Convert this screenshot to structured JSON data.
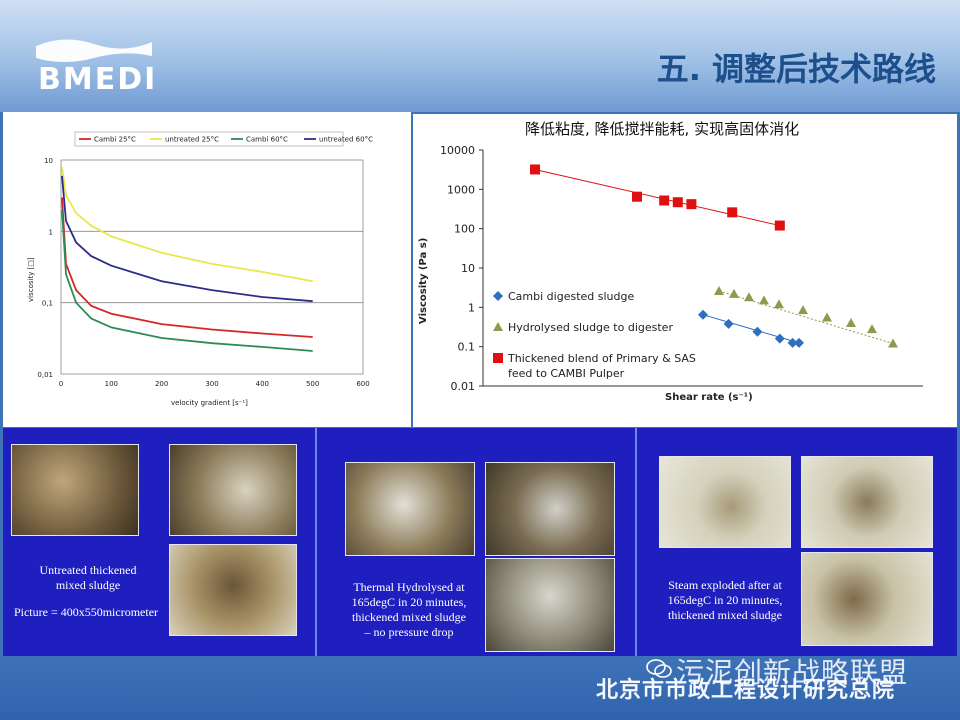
{
  "header": {
    "logo_text": "BMEDI",
    "title": "五. 调整后技术路线"
  },
  "left_chart": {
    "type": "line",
    "legend": [
      "Cambi 25°C",
      "untreated 25°C",
      "Cambi 60°C",
      "untreated 60°C"
    ],
    "xlabel": "velocity gradient [s⁻¹]",
    "ylabel": "viscosity [□]",
    "x_ticks": [
      "0",
      "100",
      "200",
      "300",
      "400",
      "500",
      "600"
    ],
    "y_ticks": [
      "10",
      "1",
      "0,1",
      "0,01"
    ],
    "xlim": [
      0,
      600
    ],
    "ylim": [
      0.01,
      10
    ],
    "yscale": "log",
    "series": [
      {
        "name": "Cambi 25°C",
        "color": "#d62728",
        "x": [
          2,
          10,
          30,
          60,
          100,
          200,
          300,
          400,
          500
        ],
        "y": [
          3,
          0.35,
          0.15,
          0.09,
          0.07,
          0.05,
          0.042,
          0.037,
          0.033
        ]
      },
      {
        "name": "untreated 25°C",
        "color": "#e8e84a",
        "x": [
          2,
          10,
          30,
          60,
          100,
          200,
          300,
          400,
          500
        ],
        "y": [
          8,
          3.2,
          1.8,
          1.2,
          0.85,
          0.5,
          0.35,
          0.27,
          0.2
        ]
      },
      {
        "name": "Cambi 60°C",
        "color": "#2e8b57",
        "x": [
          2,
          10,
          30,
          60,
          100,
          200,
          300,
          400,
          500
        ],
        "y": [
          2,
          0.25,
          0.1,
          0.06,
          0.045,
          0.032,
          0.027,
          0.024,
          0.021
        ]
      },
      {
        "name": "untreated 60°C",
        "color": "#2c2c8c",
        "x": [
          2,
          10,
          30,
          60,
          100,
          200,
          300,
          400,
          500
        ],
        "y": [
          6,
          1.4,
          0.7,
          0.45,
          0.33,
          0.2,
          0.15,
          0.12,
          0.105
        ]
      }
    ]
  },
  "right_chart": {
    "type": "scatter",
    "title": "降低粘度, 降低搅拌能耗, 实现高固体消化",
    "xlabel": "Shear rate (s⁻¹)",
    "ylabel": "Viscosity (Pa s)",
    "y_ticks": [
      "10000",
      "1000",
      "100",
      "10",
      "1",
      "0.1",
      "0.01"
    ],
    "ylim": [
      0.01,
      10000
    ],
    "yscale": "log",
    "series": [
      {
        "name": "Cambi digested sludge",
        "marker": "diamond",
        "color": "#2e6fbf",
        "x": [
          0.0,
          0.08,
          0.17,
          0.24,
          0.28,
          0.3
        ],
        "y": [
          0.65,
          0.38,
          0.24,
          0.16,
          0.125,
          0.125
        ]
      },
      {
        "name": "Hydrolysed sludge to digester",
        "marker": "triangle",
        "color": "#8f9a4e",
        "x": [
          0.02,
          0.07,
          0.12,
          0.17,
          0.22,
          0.3,
          0.38,
          0.46,
          0.53,
          0.6
        ],
        "y": [
          2.6,
          2.2,
          1.8,
          1.5,
          1.2,
          0.85,
          0.55,
          0.4,
          0.28,
          0.12
        ]
      },
      {
        "name": "Thickened blend of Primary & SAS feed to CAMBI Pulper",
        "marker": "square",
        "color": "#e01010",
        "x": [
          0.0,
          0.3,
          0.38,
          0.42,
          0.46,
          0.58,
          0.72
        ],
        "y": [
          3200,
          650,
          520,
          470,
          420,
          260,
          120
        ]
      }
    ],
    "legend": [
      {
        "label": "Cambi digested sludge",
        "marker": "diamond",
        "color": "#2e6fbf"
      },
      {
        "label": "Hydrolysed sludge to digester",
        "marker": "triangle",
        "color": "#8f9a4e"
      },
      {
        "label": "Thickened blend of Primary & SAS",
        "label2": "feed to CAMBI Pulper",
        "marker": "square",
        "color": "#e01010"
      }
    ]
  },
  "panels": [
    {
      "caption1": "Untreated thickened",
      "caption2": "mixed sludge",
      "caption3": "Picture = 400x550micrometer"
    },
    {
      "caption1": "Thermal Hydrolysed at",
      "caption2": "165degC in 20 minutes,",
      "caption3": "thickened mixed sludge",
      "caption4": "– no pressure drop"
    },
    {
      "caption1": "Steam exploded after at",
      "caption2": "165degC in 20 minutes,",
      "caption3": "thickened mixed sludge"
    }
  ],
  "footer": {
    "watermark": "污泥创新战略联盟",
    "institute": "北京市市政工程设计研究总院"
  }
}
